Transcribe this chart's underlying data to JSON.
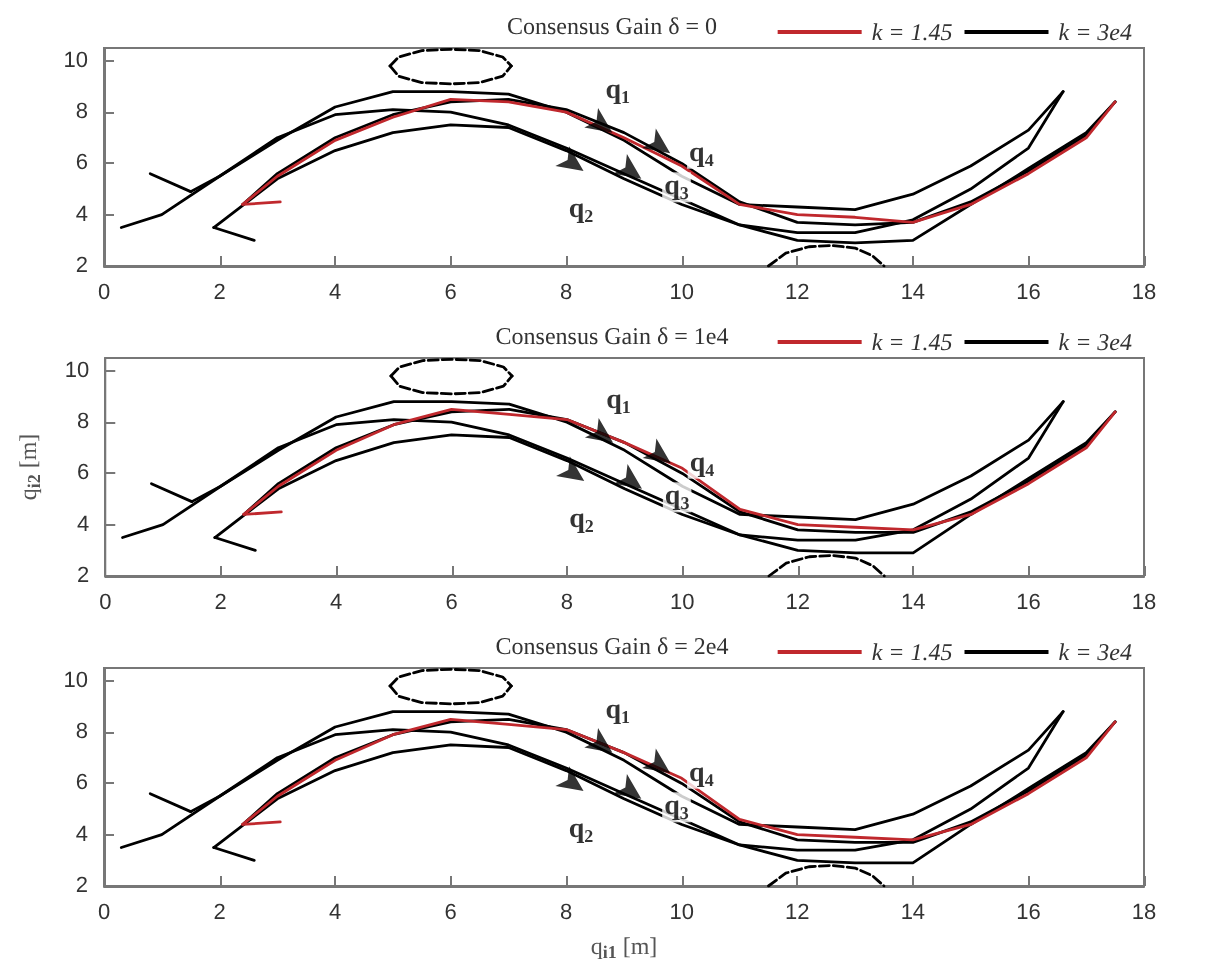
{
  "chart_data": [
    {
      "type": "line",
      "title": "Consensus Gain δ = 0",
      "xlim": [
        0,
        18
      ],
      "xticks": [
        0,
        2,
        4,
        6,
        8,
        10,
        12,
        14,
        16,
        18
      ],
      "ylim": [
        2,
        10.5
      ],
      "yticks": [
        2,
        4,
        6,
        8,
        10
      ],
      "grid": false,
      "legend": "top right",
      "series": [
        {
          "name": "k = 1.45",
          "color": "#c0282d",
          "x": [
            2.4,
            3,
            4,
            5,
            6,
            7,
            8,
            9,
            10,
            11,
            12,
            13,
            14,
            15,
            16,
            17,
            17.5
          ],
          "values": [
            4.4,
            5.5,
            6.9,
            7.8,
            8.5,
            8.4,
            8.0,
            7.0,
            5.9,
            4.4,
            4.0,
            3.9,
            3.7,
            4.4,
            5.6,
            7.0,
            8.4
          ]
        },
        {
          "name": "k = 3e4",
          "color": "#000000",
          "x": [
            0.3,
            1,
            2,
            3,
            4,
            5,
            6,
            7,
            8,
            9,
            10,
            11,
            12,
            13,
            14,
            15,
            16,
            16.6
          ],
          "values": [
            3.5,
            4,
            5.5,
            6.9,
            8.2,
            8.8,
            8.8,
            8.7,
            8.0,
            6.9,
            5.5,
            4.4,
            4.3,
            4.2,
            4.8,
            5.9,
            7.3,
            8.8
          ]
        },
        {
          "color": "#000000",
          "x": [
            1.5,
            2,
            3,
            4,
            5,
            6,
            7,
            8,
            9,
            10,
            11,
            12,
            13,
            14,
            15,
            16,
            16.6
          ],
          "values": [
            4.9,
            5.5,
            7.0,
            7.9,
            8.1,
            8.0,
            7.5,
            6.6,
            5.6,
            4.6,
            3.6,
            3.3,
            3.3,
            3.8,
            5.0,
            6.6,
            8.8
          ]
        },
        {
          "color": "#000000",
          "x": [
            1.9,
            3,
            4,
            5,
            6,
            7,
            8,
            9,
            10,
            11,
            12,
            13,
            14,
            15,
            16,
            17,
            17.5
          ],
          "values": [
            3.5,
            5.4,
            6.5,
            7.2,
            7.5,
            7.4,
            6.5,
            5.4,
            4.4,
            3.6,
            3.0,
            2.9,
            3.0,
            4.4,
            5.8,
            7.2,
            8.4
          ]
        },
        {
          "color": "#000000",
          "x": [
            2.4,
            3,
            4,
            5,
            6,
            7,
            8,
            9,
            10,
            11,
            12,
            13,
            14,
            15,
            16,
            17,
            17.5
          ],
          "values": [
            4.4,
            5.6,
            7.0,
            7.9,
            8.4,
            8.5,
            8.1,
            7.2,
            6.0,
            4.5,
            3.7,
            3.6,
            3.7,
            4.5,
            5.7,
            7.1,
            8.4
          ]
        },
        {
          "color": "#000000",
          "x": [
            0.8,
            1.5
          ],
          "values": [
            5.6,
            4.9
          ]
        },
        {
          "color": "#000000",
          "x": [
            1.9,
            2.6
          ],
          "values": [
            3.5,
            3.0
          ]
        },
        {
          "color": "#c0282d",
          "x": [
            2.4,
            3.05
          ],
          "values": [
            4.4,
            4.5
          ]
        },
        {
          "color": "#000000",
          "line_style": "dashed",
          "x": [
            4.95,
            5.1,
            5.5,
            6,
            6.5,
            6.9,
            7.05
          ],
          "values": [
            9.8,
            10.15,
            10.4,
            10.45,
            10.4,
            10.15,
            9.8
          ]
        },
        {
          "color": "#000000",
          "line_style": "dashed",
          "x": [
            4.95,
            5.1,
            5.5,
            6,
            6.5,
            6.9,
            7.05
          ],
          "values": [
            9.8,
            9.4,
            9.15,
            9.1,
            9.15,
            9.4,
            9.8
          ]
        },
        {
          "color": "#000000",
          "line_style": "dashed",
          "x": [
            11.5,
            11.8,
            12.2,
            12.6,
            13,
            13.3,
            13.5
          ],
          "values": [
            2.0,
            2.5,
            2.75,
            2.8,
            2.7,
            2.4,
            2.0
          ]
        }
      ],
      "annotations": [
        {
          "text": "q$_{1}$",
          "x": 8.8,
          "y": 7.2
        },
        {
          "text": "q$_{4}$",
          "x": 9.8,
          "y": 6.4
        },
        {
          "text": "q$_{2}$",
          "x": 8.3,
          "y": 5.7
        },
        {
          "text": "q$_{3}$",
          "x": 9.3,
          "y": 5.4
        }
      ]
    },
    {
      "type": "line",
      "title": "Consensus Gain δ = 1e4",
      "ylabel": "q$_{i2}$ [m]",
      "xlim": [
        0,
        18
      ],
      "xticks": [
        0,
        2,
        4,
        6,
        8,
        10,
        12,
        14,
        16,
        18
      ],
      "ylim": [
        2,
        10.5
      ],
      "yticks": [
        2,
        4,
        6,
        8,
        10
      ],
      "grid": false,
      "legend": "top right",
      "series": [
        {
          "name": "k = 1.45",
          "color": "#c0282d",
          "x": [
            2.4,
            3,
            4,
            5,
            6,
            7,
            8,
            9,
            10,
            11,
            12,
            13,
            14,
            15,
            16,
            17,
            17.5
          ],
          "values": [
            4.4,
            5.5,
            6.9,
            7.9,
            8.5,
            8.3,
            8.1,
            7.2,
            6.2,
            4.6,
            4.0,
            3.9,
            3.8,
            4.4,
            5.6,
            7.0,
            8.4
          ]
        },
        {
          "name": "k = 3e4",
          "color": "#000000",
          "x": [
            0.3,
            1,
            2,
            3,
            4,
            5,
            6,
            7,
            8,
            9,
            10,
            11,
            12,
            13,
            14,
            15,
            16,
            16.6
          ],
          "values": [
            3.5,
            4,
            5.5,
            6.9,
            8.2,
            8.8,
            8.8,
            8.7,
            8.0,
            6.9,
            5.5,
            4.4,
            4.3,
            4.2,
            4.8,
            5.9,
            7.3,
            8.8
          ]
        },
        {
          "color": "#000000",
          "x": [
            1.5,
            2,
            3,
            4,
            5,
            6,
            7,
            8,
            9,
            10,
            11,
            12,
            13,
            14,
            15,
            16,
            16.6
          ],
          "values": [
            4.9,
            5.5,
            7.0,
            7.9,
            8.1,
            8.0,
            7.5,
            6.6,
            5.6,
            4.6,
            3.6,
            3.4,
            3.4,
            3.8,
            5.0,
            6.6,
            8.8
          ]
        },
        {
          "color": "#000000",
          "x": [
            1.9,
            3,
            4,
            5,
            6,
            7,
            8,
            9,
            10,
            11,
            12,
            13,
            14,
            15,
            16,
            17,
            17.5
          ],
          "values": [
            3.5,
            5.4,
            6.5,
            7.2,
            7.5,
            7.4,
            6.5,
            5.4,
            4.4,
            3.6,
            3.0,
            2.9,
            2.9,
            4.4,
            5.8,
            7.2,
            8.4
          ]
        },
        {
          "color": "#000000",
          "x": [
            2.4,
            3,
            4,
            5,
            6,
            7,
            8,
            9,
            10,
            11,
            12,
            13,
            14,
            15,
            16,
            17,
            17.5
          ],
          "values": [
            4.4,
            5.6,
            7.0,
            7.9,
            8.4,
            8.5,
            8.1,
            7.2,
            6.0,
            4.5,
            3.8,
            3.7,
            3.7,
            4.5,
            5.7,
            7.1,
            8.4
          ]
        },
        {
          "color": "#000000",
          "x": [
            0.8,
            1.5
          ],
          "values": [
            5.6,
            4.9
          ]
        },
        {
          "color": "#000000",
          "x": [
            1.9,
            2.6
          ],
          "values": [
            3.5,
            3.0
          ]
        },
        {
          "color": "#c0282d",
          "x": [
            2.4,
            3.05
          ],
          "values": [
            4.4,
            4.5
          ]
        },
        {
          "color": "#000000",
          "line_style": "dashed",
          "x": [
            4.95,
            5.1,
            5.5,
            6,
            6.5,
            6.9,
            7.05
          ],
          "values": [
            9.8,
            10.15,
            10.4,
            10.45,
            10.4,
            10.15,
            9.8
          ]
        },
        {
          "color": "#000000",
          "line_style": "dashed",
          "x": [
            4.95,
            5.1,
            5.5,
            6,
            6.5,
            6.9,
            7.05
          ],
          "values": [
            9.8,
            9.4,
            9.15,
            9.1,
            9.15,
            9.4,
            9.8
          ]
        },
        {
          "color": "#000000",
          "line_style": "dashed",
          "x": [
            11.5,
            11.8,
            12.2,
            12.6,
            13,
            13.3,
            13.5
          ],
          "values": [
            2.0,
            2.5,
            2.75,
            2.8,
            2.7,
            2.4,
            2.0
          ]
        }
      ],
      "annotations": [
        {
          "text": "q$_{1}$",
          "x": 8.8,
          "y": 7.2
        },
        {
          "text": "q$_{4}$",
          "x": 9.8,
          "y": 6.4
        },
        {
          "text": "q$_{2}$",
          "x": 8.3,
          "y": 5.7
        },
        {
          "text": "q$_{3}$",
          "x": 9.3,
          "y": 5.4
        }
      ]
    },
    {
      "type": "line",
      "title": "Consensus Gain δ = 2e4",
      "xlabel": "q$_{i1}$ [m]",
      "xlim": [
        0,
        18
      ],
      "xticks": [
        0,
        2,
        4,
        6,
        8,
        10,
        12,
        14,
        16,
        18
      ],
      "ylim": [
        2,
        10.5
      ],
      "yticks": [
        2,
        4,
        6,
        8,
        10
      ],
      "grid": false,
      "legend": "top right",
      "series": [
        {
          "name": "k = 1.45",
          "color": "#c0282d",
          "x": [
            2.4,
            3,
            4,
            5,
            6,
            7,
            8,
            9,
            10,
            11,
            12,
            13,
            14,
            15,
            16,
            17,
            17.5
          ],
          "values": [
            4.4,
            5.5,
            6.9,
            7.9,
            8.5,
            8.3,
            8.1,
            7.2,
            6.2,
            4.6,
            4.0,
            3.9,
            3.8,
            4.4,
            5.6,
            7.0,
            8.4
          ]
        },
        {
          "name": "k = 3e4",
          "color": "#000000",
          "x": [
            0.3,
            1,
            2,
            3,
            4,
            5,
            6,
            7,
            8,
            9,
            10,
            11,
            12,
            13,
            14,
            15,
            16,
            16.6
          ],
          "values": [
            3.5,
            4,
            5.5,
            6.9,
            8.2,
            8.8,
            8.8,
            8.7,
            8.0,
            6.9,
            5.5,
            4.4,
            4.3,
            4.2,
            4.8,
            5.9,
            7.3,
            8.8
          ]
        },
        {
          "color": "#000000",
          "x": [
            1.5,
            2,
            3,
            4,
            5,
            6,
            7,
            8,
            9,
            10,
            11,
            12,
            13,
            14,
            15,
            16,
            16.6
          ],
          "values": [
            4.9,
            5.5,
            7.0,
            7.9,
            8.1,
            8.0,
            7.5,
            6.6,
            5.6,
            4.6,
            3.6,
            3.4,
            3.4,
            3.8,
            5.0,
            6.6,
            8.8
          ]
        },
        {
          "color": "#000000",
          "x": [
            1.9,
            3,
            4,
            5,
            6,
            7,
            8,
            9,
            10,
            11,
            12,
            13,
            14,
            15,
            16,
            17,
            17.5
          ],
          "values": [
            3.5,
            5.4,
            6.5,
            7.2,
            7.5,
            7.4,
            6.5,
            5.4,
            4.4,
            3.6,
            3.0,
            2.9,
            2.9,
            4.4,
            5.8,
            7.2,
            8.4
          ]
        },
        {
          "color": "#000000",
          "x": [
            2.4,
            3,
            4,
            5,
            6,
            7,
            8,
            9,
            10,
            11,
            12,
            13,
            14,
            15,
            16,
            17,
            17.5
          ],
          "values": [
            4.4,
            5.6,
            7.0,
            7.9,
            8.4,
            8.5,
            8.1,
            7.2,
            6.0,
            4.5,
            3.8,
            3.7,
            3.7,
            4.5,
            5.7,
            7.1,
            8.4
          ]
        },
        {
          "color": "#000000",
          "x": [
            0.8,
            1.5
          ],
          "values": [
            5.6,
            4.9
          ]
        },
        {
          "color": "#000000",
          "x": [
            1.9,
            2.6
          ],
          "values": [
            3.5,
            3.0
          ]
        },
        {
          "color": "#c0282d",
          "x": [
            2.4,
            3.05
          ],
          "values": [
            4.4,
            4.5
          ]
        },
        {
          "color": "#000000",
          "line_style": "dashed",
          "x": [
            4.95,
            5.1,
            5.5,
            6,
            6.5,
            6.9,
            7.05
          ],
          "values": [
            9.8,
            10.15,
            10.4,
            10.45,
            10.4,
            10.15,
            9.8
          ]
        },
        {
          "color": "#000000",
          "line_style": "dashed",
          "x": [
            4.95,
            5.1,
            5.5,
            6,
            6.5,
            6.9,
            7.05
          ],
          "values": [
            9.8,
            9.4,
            9.15,
            9.1,
            9.15,
            9.4,
            9.8
          ]
        },
        {
          "color": "#000000",
          "line_style": "dashed",
          "x": [
            11.5,
            11.8,
            12.2,
            12.6,
            13,
            13.3,
            13.5
          ],
          "values": [
            2.0,
            2.5,
            2.75,
            2.8,
            2.7,
            2.4,
            2.0
          ]
        }
      ],
      "annotations": [
        {
          "text": "q$_{1}$",
          "x": 8.8,
          "y": 7.2
        },
        {
          "text": "q$_{4}$",
          "x": 9.8,
          "y": 6.4
        },
        {
          "text": "q$_{2}$",
          "x": 8.3,
          "y": 5.7
        },
        {
          "text": "q$_{3}$",
          "x": 9.3,
          "y": 5.4
        }
      ]
    }
  ]
}
